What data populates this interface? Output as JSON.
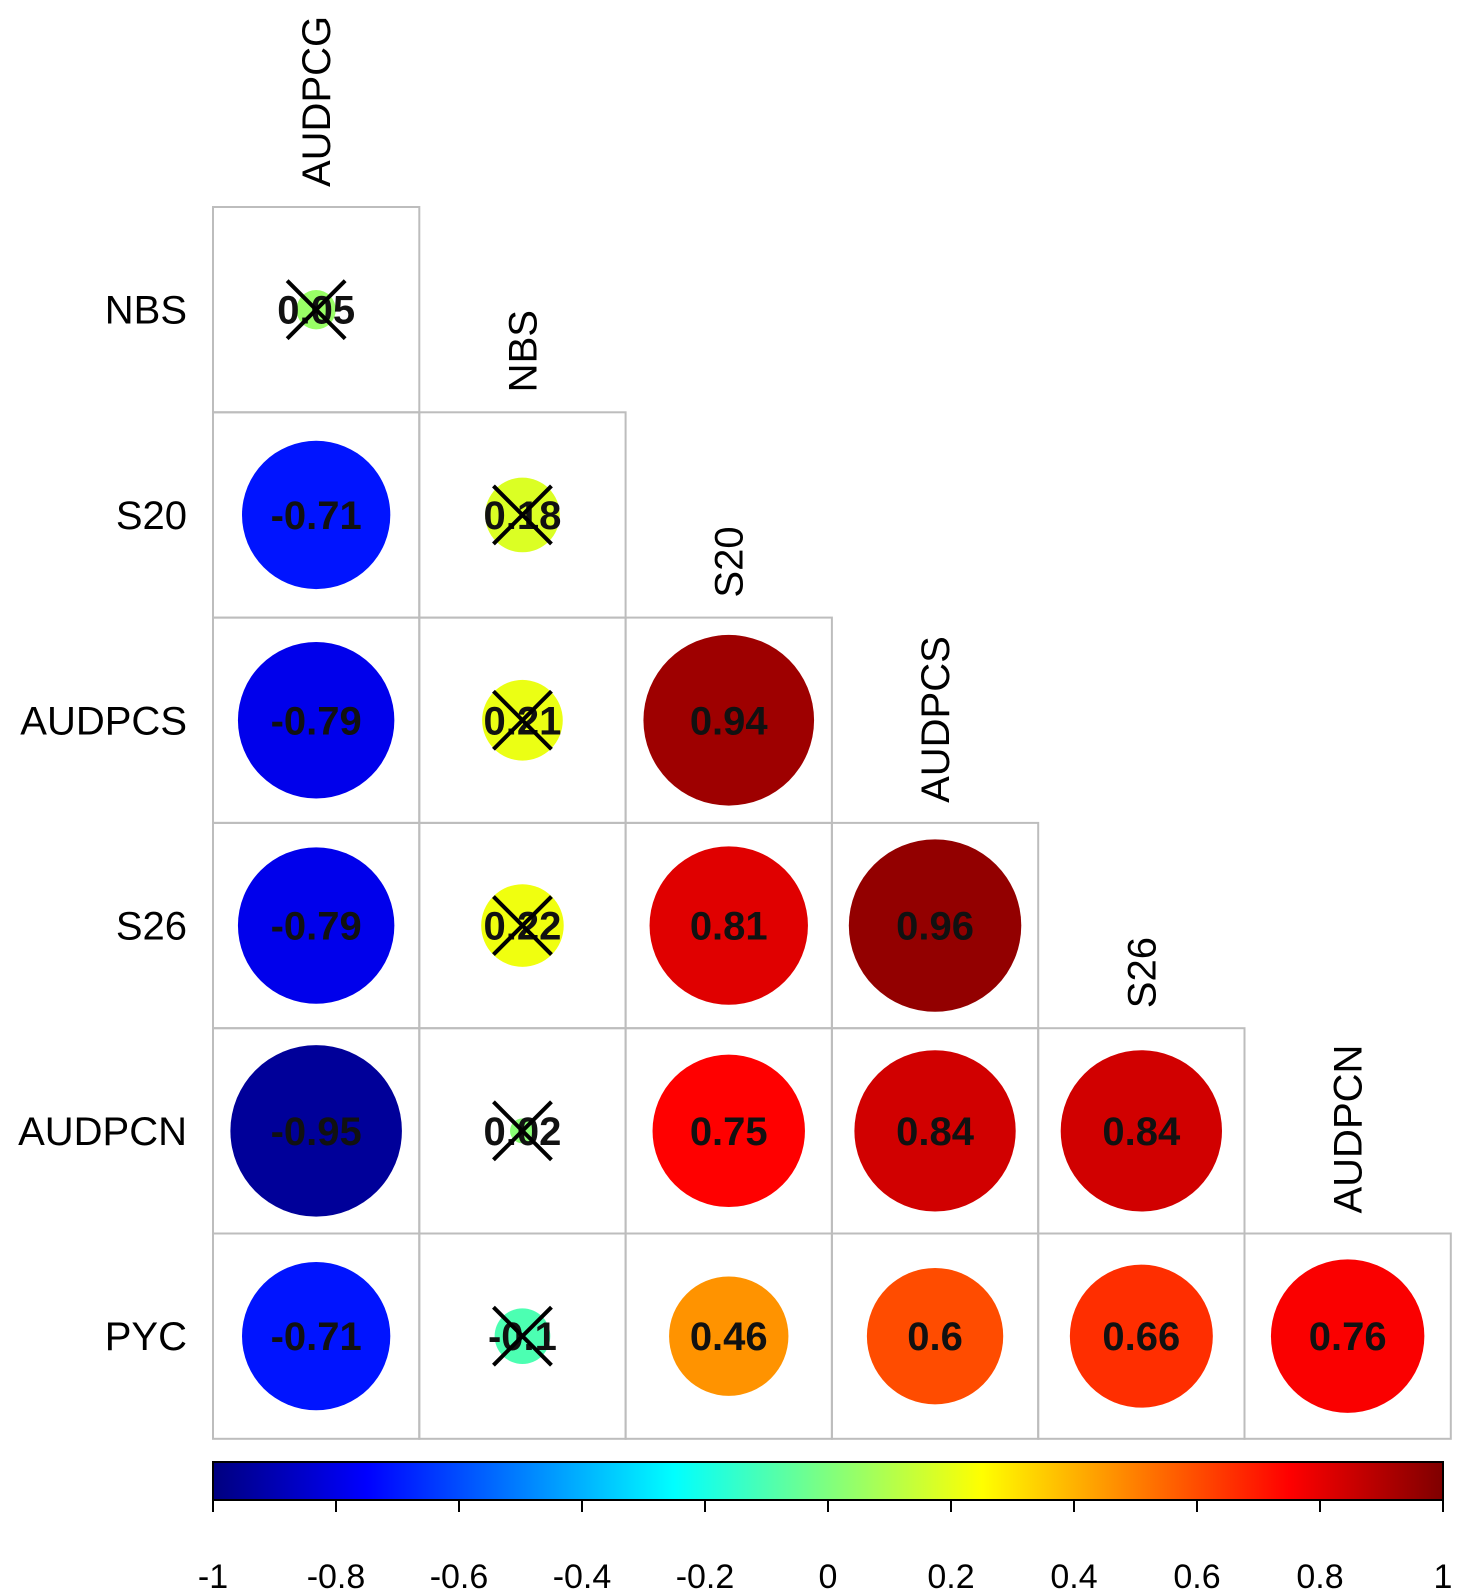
{
  "chart_data": {
    "type": "heatmap",
    "subtype": "correlation-matrix-lower-triangle",
    "glyph": "circle",
    "variables_rows": [
      "NBS",
      "S20",
      "AUDPCS",
      "S26",
      "AUDPCN",
      "PYC"
    ],
    "variables_cols": [
      "AUDPCG",
      "NBS",
      "S20",
      "AUDPCS",
      "S26",
      "AUDPCN"
    ],
    "cells": [
      {
        "row": "NBS",
        "col": "AUDPCG",
        "value": 0.05,
        "label": "0.05",
        "crossed": true
      },
      {
        "row": "S20",
        "col": "AUDPCG",
        "value": -0.71,
        "label": "-0.71",
        "crossed": false
      },
      {
        "row": "S20",
        "col": "NBS",
        "value": 0.18,
        "label": "0.18",
        "crossed": true
      },
      {
        "row": "AUDPCS",
        "col": "AUDPCG",
        "value": -0.79,
        "label": "-0.79",
        "crossed": false
      },
      {
        "row": "AUDPCS",
        "col": "NBS",
        "value": 0.21,
        "label": "0.21",
        "crossed": true
      },
      {
        "row": "AUDPCS",
        "col": "S20",
        "value": 0.94,
        "label": "0.94",
        "crossed": false
      },
      {
        "row": "S26",
        "col": "AUDPCG",
        "value": -0.79,
        "label": "-0.79",
        "crossed": false
      },
      {
        "row": "S26",
        "col": "NBS",
        "value": 0.22,
        "label": "0.22",
        "crossed": true
      },
      {
        "row": "S26",
        "col": "S20",
        "value": 0.81,
        "label": "0.81",
        "crossed": false
      },
      {
        "row": "S26",
        "col": "AUDPCS",
        "value": 0.96,
        "label": "0.96",
        "crossed": false
      },
      {
        "row": "AUDPCN",
        "col": "AUDPCG",
        "value": -0.95,
        "label": "-0.95",
        "crossed": false
      },
      {
        "row": "AUDPCN",
        "col": "NBS",
        "value": 0.02,
        "label": "0.02",
        "crossed": true
      },
      {
        "row": "AUDPCN",
        "col": "S20",
        "value": 0.75,
        "label": "0.75",
        "crossed": false
      },
      {
        "row": "AUDPCN",
        "col": "AUDPCS",
        "value": 0.84,
        "label": "0.84",
        "crossed": false
      },
      {
        "row": "AUDPCN",
        "col": "S26",
        "value": 0.84,
        "label": "0.84",
        "crossed": false
      },
      {
        "row": "PYC",
        "col": "AUDPCG",
        "value": -0.71,
        "label": "-0.71",
        "crossed": false
      },
      {
        "row": "PYC",
        "col": "NBS",
        "value": -0.1,
        "label": "-0.1",
        "crossed": true
      },
      {
        "row": "PYC",
        "col": "S20",
        "value": 0.46,
        "label": "0.46",
        "crossed": false
      },
      {
        "row": "PYC",
        "col": "AUDPCS",
        "value": 0.6,
        "label": "0.6",
        "crossed": false
      },
      {
        "row": "PYC",
        "col": "S26",
        "value": 0.66,
        "label": "0.66",
        "crossed": false
      },
      {
        "row": "PYC",
        "col": "AUDPCN",
        "value": 0.76,
        "label": "0.76",
        "crossed": false
      }
    ],
    "colorbar": {
      "range": [
        -1,
        1
      ],
      "ticks": [
        -1,
        -0.8,
        -0.6,
        -0.4,
        -0.2,
        0,
        0.2,
        0.4,
        0.6,
        0.8,
        1
      ],
      "tick_labels": [
        "-1",
        "-0.8",
        "-0.6",
        "-0.4",
        "-0.2",
        "0",
        "0.2",
        "0.4",
        "0.6",
        "0.8",
        "1"
      ],
      "colors": [
        "#00007f",
        "#0000ff",
        "#007fff",
        "#00ffff",
        "#7fff7f",
        "#ffff00",
        "#ff7f00",
        "#ff0000",
        "#7f0000"
      ]
    },
    "title": "",
    "legend": "bottom"
  }
}
